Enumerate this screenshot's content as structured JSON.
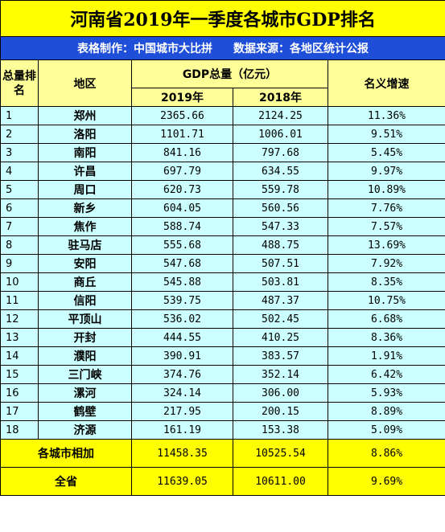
{
  "title": "河南省2019年一季度各城市GDP排名",
  "subtitle": {
    "maker": "表格制作：中国城市大比拼",
    "source": "数据来源：各地区统计公报"
  },
  "headers": {
    "rank": "总量排名",
    "region": "地区",
    "gdp_total": "GDP总量（亿元）",
    "year_2019": "2019年",
    "year_2018": "2018年",
    "growth": "名义增速"
  },
  "rows": [
    {
      "rank": "1",
      "city": "郑州",
      "gdp2019": "2365.66",
      "gdp2018": "2124.25",
      "growth": "11.36%"
    },
    {
      "rank": "2",
      "city": "洛阳",
      "gdp2019": "1101.71",
      "gdp2018": "1006.01",
      "growth": "9.51%"
    },
    {
      "rank": "3",
      "city": "南阳",
      "gdp2019": "841.16",
      "gdp2018": "797.68",
      "growth": "5.45%"
    },
    {
      "rank": "4",
      "city": "许昌",
      "gdp2019": "697.79",
      "gdp2018": "634.55",
      "growth": "9.97%"
    },
    {
      "rank": "5",
      "city": "周口",
      "gdp2019": "620.73",
      "gdp2018": "559.78",
      "growth": "10.89%"
    },
    {
      "rank": "6",
      "city": "新乡",
      "gdp2019": "604.05",
      "gdp2018": "560.56",
      "growth": "7.76%"
    },
    {
      "rank": "7",
      "city": "焦作",
      "gdp2019": "588.74",
      "gdp2018": "547.33",
      "growth": "7.57%"
    },
    {
      "rank": "8",
      "city": "驻马店",
      "gdp2019": "555.68",
      "gdp2018": "488.75",
      "growth": "13.69%"
    },
    {
      "rank": "9",
      "city": "安阳",
      "gdp2019": "547.68",
      "gdp2018": "507.51",
      "growth": "7.92%"
    },
    {
      "rank": "10",
      "city": "商丘",
      "gdp2019": "545.88",
      "gdp2018": "503.81",
      "growth": "8.35%"
    },
    {
      "rank": "11",
      "city": "信阳",
      "gdp2019": "539.75",
      "gdp2018": "487.37",
      "growth": "10.75%"
    },
    {
      "rank": "12",
      "city": "平顶山",
      "gdp2019": "536.02",
      "gdp2018": "502.45",
      "growth": "6.68%"
    },
    {
      "rank": "13",
      "city": "开封",
      "gdp2019": "444.55",
      "gdp2018": "410.25",
      "growth": "8.36%"
    },
    {
      "rank": "14",
      "city": "濮阳",
      "gdp2019": "390.91",
      "gdp2018": "383.57",
      "growth": "1.91%"
    },
    {
      "rank": "15",
      "city": "三门峡",
      "gdp2019": "374.76",
      "gdp2018": "352.14",
      "growth": "6.42%"
    },
    {
      "rank": "16",
      "city": "漯河",
      "gdp2019": "324.14",
      "gdp2018": "306.00",
      "growth": "5.93%"
    },
    {
      "rank": "17",
      "city": "鹤壁",
      "gdp2019": "217.95",
      "gdp2018": "200.15",
      "growth": "8.89%"
    },
    {
      "rank": "18",
      "city": "济源",
      "gdp2019": "161.19",
      "gdp2018": "153.38",
      "growth": "5.09%"
    }
  ],
  "totals": [
    {
      "label": "各城市相加",
      "gdp2019": "11458.35",
      "gdp2018": "10525.54",
      "growth": "8.86%"
    },
    {
      "label": "全省",
      "gdp2019": "11639.05",
      "gdp2018": "10611.00",
      "growth": "9.69%"
    }
  ],
  "colors": {
    "title_bg": "#ffff00",
    "subtitle_bg": "#1f4ed8",
    "header_bg": "#ffff99",
    "row_bg": "#ccffff"
  }
}
